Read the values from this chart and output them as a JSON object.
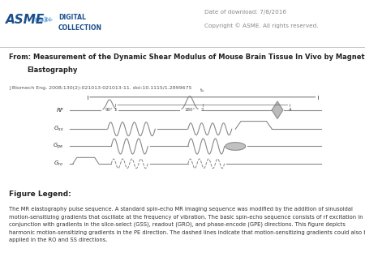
{
  "white_bg": "#ffffff",
  "header_bg": "#ffffff",
  "title_bg": "#e8e7e4",
  "date_text": "Date of download: 7/8/2016",
  "copyright_text": "Copyright © ASME. All rights reserved.",
  "journal_text": "J Biomech Eng. 2008;130(2):021013-021013-11. doi:10.1115/1.2899675",
  "figure_legend_title": "Figure Legend:",
  "figure_legend_body": "The MR elastography pulse sequence. A standard spin-echo MR imaging sequence was modified by the addition of sinusoidal\nmotion-sensitizing gradients that oscillate at the frequency of vibration. The basic spin-echo sequence consists of rf excitation in\nconjunction with gradients in the slice-select (GSS), readout (GRO), and phase-encode (GPE) directions. This figure depicts\nharmonic motion-sensitizing gradients in the PE direction. The dashed lines indicate that motion-sensitizing gradients could also be\napplied in the RO and SS directions.",
  "gray_line": "#bbbbbb",
  "dark_text": "#222222",
  "medium_text": "#555555",
  "light_text": "#888888",
  "pulse_color": "#888888",
  "asme_blue": "#1a4f8a"
}
